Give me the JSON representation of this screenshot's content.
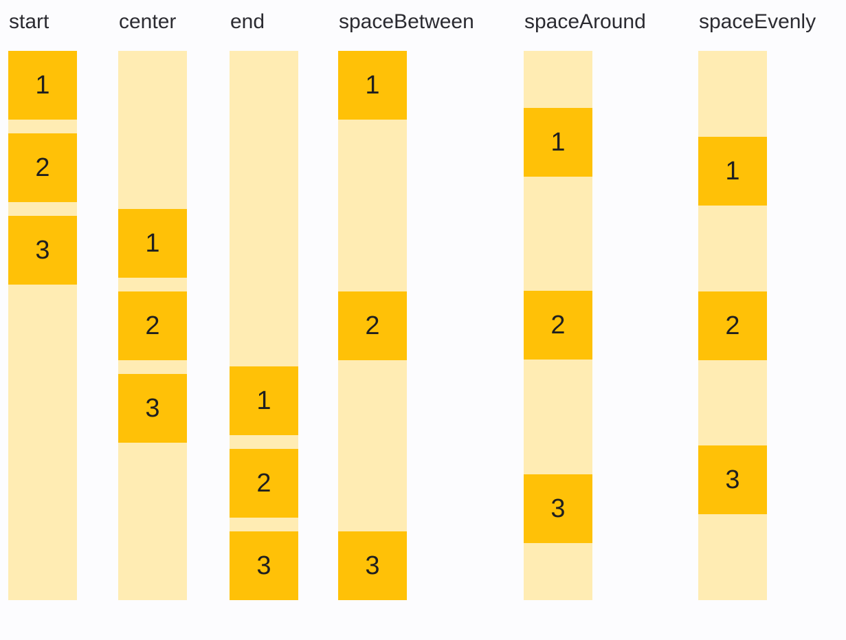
{
  "page": {
    "background_color": "#fcfcfe",
    "description": "column main-axis alignment demo"
  },
  "colors": {
    "box_fill": "#FFC107",
    "track_fill": "#FFECB3",
    "label_text": "#2b2b31",
    "box_text": "#1f1f1f"
  },
  "columns": [
    {
      "label": "start",
      "justify": "flex-start",
      "gapped": true,
      "items": [
        "1",
        "2",
        "3"
      ]
    },
    {
      "label": "center",
      "justify": "center",
      "gapped": true,
      "items": [
        "1",
        "2",
        "3"
      ]
    },
    {
      "label": "end",
      "justify": "flex-end",
      "gapped": true,
      "items": [
        "1",
        "2",
        "3"
      ]
    },
    {
      "label": "spaceBetween",
      "justify": "space-between",
      "gapped": false,
      "items": [
        "1",
        "2",
        "3"
      ]
    },
    {
      "label": "spaceAround",
      "justify": "space-around",
      "gapped": false,
      "items": [
        "1",
        "2",
        "3"
      ]
    },
    {
      "label": "spaceEvenly",
      "justify": "space-evenly",
      "gapped": false,
      "items": [
        "1",
        "2",
        "3"
      ]
    }
  ]
}
